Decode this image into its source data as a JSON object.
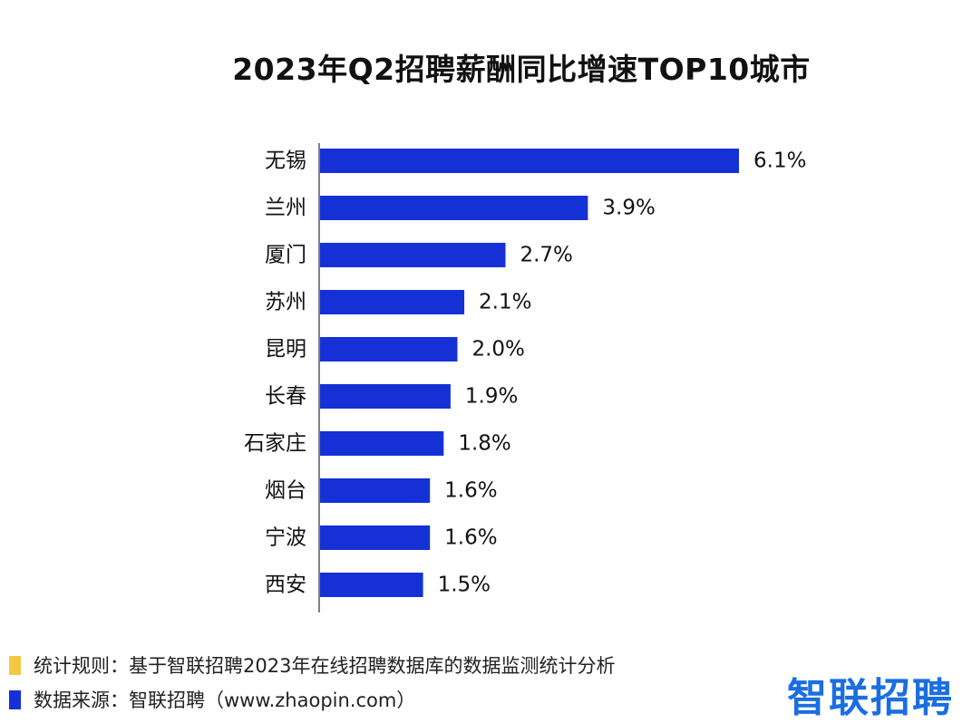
{
  "chart_data": {
    "type": "bar",
    "orientation": "horizontal",
    "title": "2023年Q2招聘薪酬同比增速TOP10城市",
    "categories": [
      "无锡",
      "兰州",
      "厦门",
      "苏州",
      "昆明",
      "长春",
      "石家庄",
      "烟台",
      "宁波",
      "西安"
    ],
    "values": [
      6.1,
      3.9,
      2.7,
      2.1,
      2.0,
      1.9,
      1.8,
      1.6,
      1.6,
      1.5
    ],
    "value_labels": [
      "6.1%",
      "3.9%",
      "2.7%",
      "2.1%",
      "2.0%",
      "1.9%",
      "1.8%",
      "1.6%",
      "1.6%",
      "1.5%"
    ],
    "unit": "%",
    "xlim": [
      0,
      6.1
    ],
    "grid": false,
    "legend": "none",
    "bar_color": "#1531d6",
    "axis_color": "#555555"
  },
  "footnotes": [
    {
      "text": "统计规则：基于智联招聘2023年在线招聘数据库的数据监测统计分析",
      "marker_color": "#f5c842"
    },
    {
      "text": "数据来源：智联招聘（www.zhaopin.com）",
      "marker_color": "#1531d6"
    }
  ],
  "brand": {
    "logo_text": "智联招聘",
    "color": "#1b6ee0"
  }
}
